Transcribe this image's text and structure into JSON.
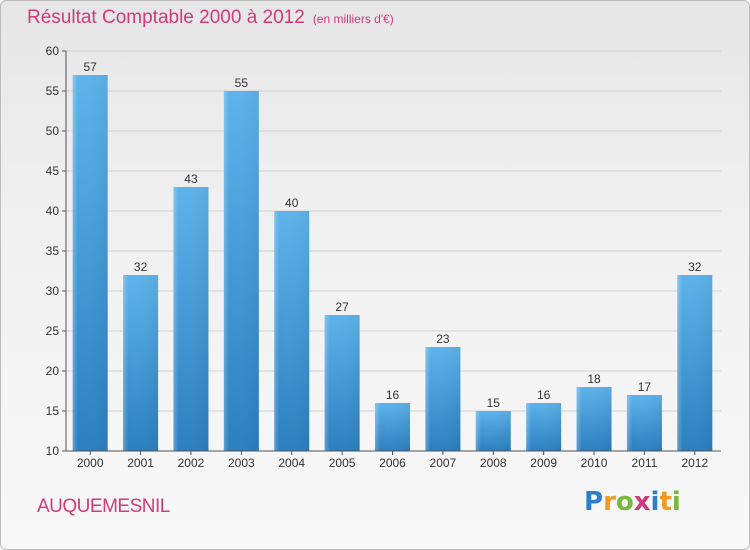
{
  "header": {
    "title": "Résultat Comptable 2000 à 2012",
    "subtitle": "(en milliers d'€)"
  },
  "footer": {
    "commune": "AUQUEMESNIL",
    "logo": "Proxiti",
    "logo_letters": [
      "P",
      "r",
      "o",
      "x",
      "i",
      "t",
      "i"
    ],
    "logo_colors": [
      "#2a7fc8",
      "#f29a1d",
      "#7ab83a",
      "#d23a7a",
      "#2a7fc8",
      "#f29a1d",
      "#7ab83a"
    ]
  },
  "colors": {
    "title": "#d23a7a",
    "bar_top": "#5db3ea",
    "bar_bottom": "#2b7fc0"
  },
  "chart_data": {
    "type": "bar",
    "title": "Résultat Comptable 2000 à 2012",
    "ylabel": "(en milliers d'€)",
    "xlabel": "",
    "categories": [
      "2000",
      "2001",
      "2002",
      "2003",
      "2004",
      "2005",
      "2006",
      "2007",
      "2008",
      "2009",
      "2010",
      "2011",
      "2012"
    ],
    "values": [
      57,
      32,
      43,
      55,
      40,
      27,
      16,
      23,
      15,
      16,
      18,
      17,
      32
    ],
    "ylim": [
      10,
      60
    ],
    "yticks": [
      10,
      15,
      20,
      25,
      30,
      35,
      40,
      45,
      50,
      55,
      60
    ],
    "grid": true
  }
}
